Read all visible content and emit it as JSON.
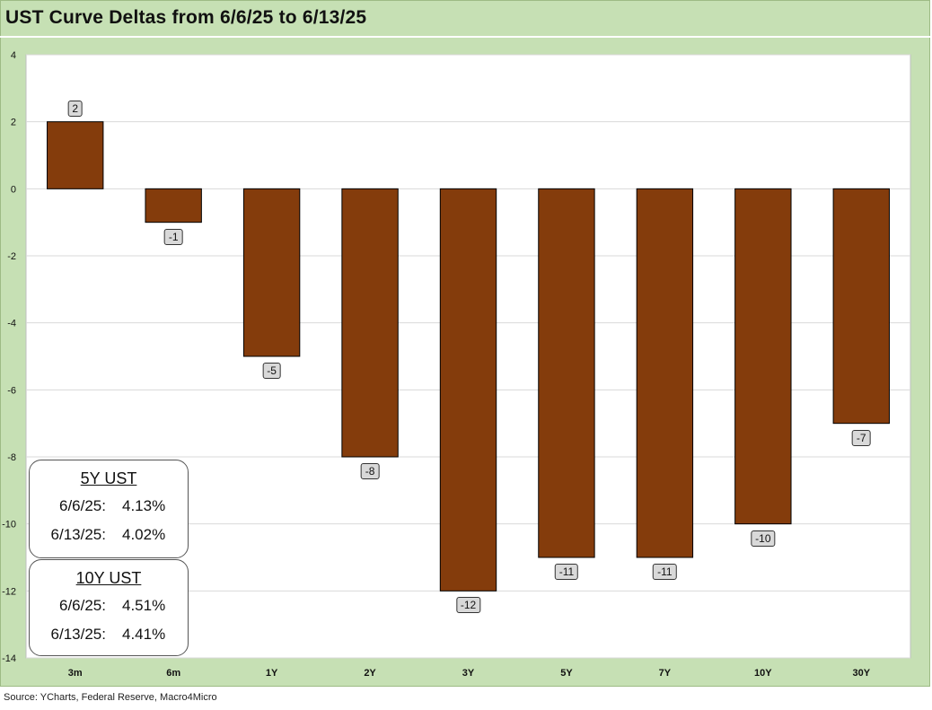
{
  "title": "UST Curve Deltas from 6/6/25 to 6/13/25",
  "source": "Source: YCharts, Federal Reserve, Macro4Micro",
  "colors": {
    "bar": "#843c0c",
    "frame": "#c6e0b4",
    "grid": "#d9d9d9"
  },
  "chart_data": {
    "type": "bar",
    "title": "UST Curve Deltas from 6/6/25 to 6/13/25",
    "xlabel": "",
    "ylabel": "",
    "categories": [
      "3m",
      "6m",
      "1Y",
      "2Y",
      "3Y",
      "5Y",
      "7Y",
      "10Y",
      "30Y"
    ],
    "values": [
      2,
      -1,
      -5,
      -8,
      -12,
      -11,
      -11,
      -10,
      -7
    ],
    "data_labels": [
      "2",
      "-1",
      "-5",
      "-8",
      "-12",
      "-11",
      "-11",
      "-10",
      "-7"
    ],
    "ylim": [
      -14,
      4
    ],
    "yticks": [
      4,
      2,
      0,
      -2,
      -4,
      -6,
      -8,
      -10,
      -12,
      -14
    ],
    "grid": true,
    "legend": "none"
  },
  "boxes": {
    "ust5": {
      "title": "5Y UST",
      "rows": [
        {
          "label": "6/6/25:",
          "value": "4.13%"
        },
        {
          "label": "6/13/25:",
          "value": "4.02%"
        }
      ]
    },
    "ust10": {
      "title": "10Y UST",
      "rows": [
        {
          "label": "6/6/25:",
          "value": "4.51%"
        },
        {
          "label": "6/13/25:",
          "value": "4.41%"
        }
      ]
    }
  }
}
